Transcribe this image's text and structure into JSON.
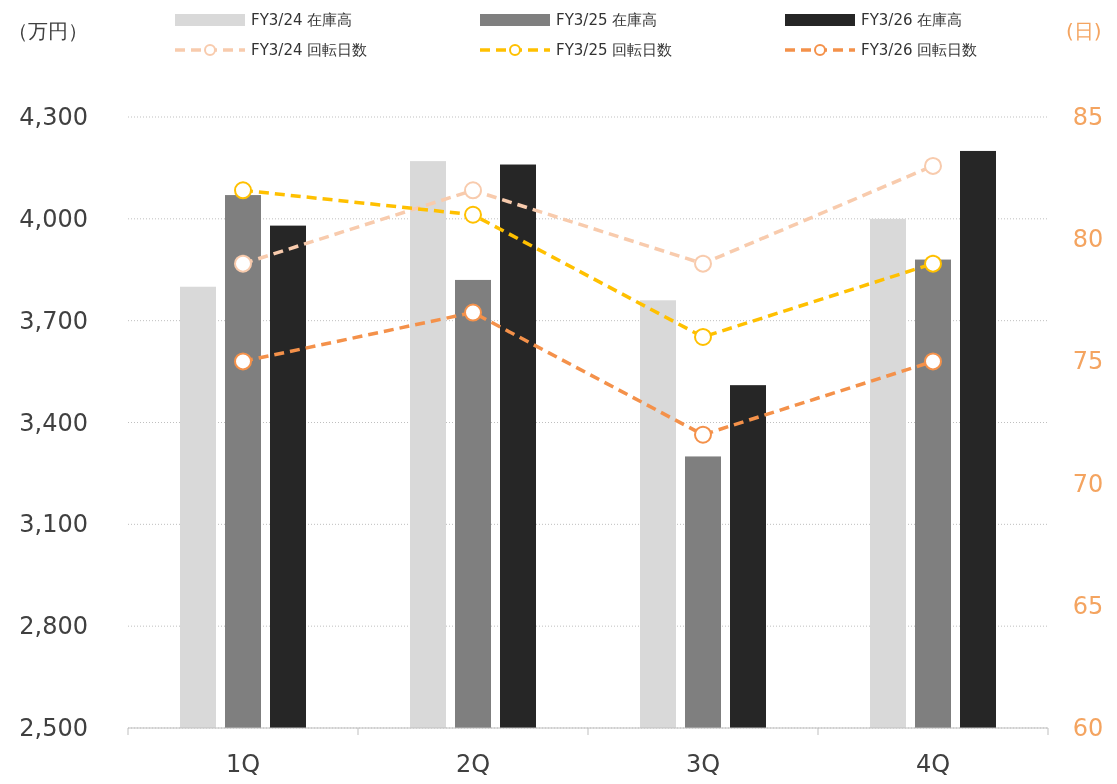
{
  "chart_data": {
    "type": "bar",
    "ylabel": "（万円）",
    "y2label": "(日)",
    "categories": [
      "1Q",
      "2Q",
      "3Q",
      "4Q"
    ],
    "ylim": [
      2500,
      4300
    ],
    "yticks": [
      {
        "value": 2500,
        "label": "2,500"
      },
      {
        "value": 2800,
        "label": "2,800"
      },
      {
        "value": 3100,
        "label": "3,100"
      },
      {
        "value": 3400,
        "label": "3,400"
      },
      {
        "value": 3700,
        "label": "3,700"
      },
      {
        "value": 4000,
        "label": "4,000"
      },
      {
        "value": 4300,
        "label": "4,300"
      }
    ],
    "y2lim": [
      60,
      85
    ],
    "y2ticks": [
      60,
      65,
      70,
      75,
      80,
      85
    ],
    "grid": "y",
    "legend": "top",
    "marker": "circle",
    "line_style": "dashed",
    "series": [
      {
        "name": "FY3/24 在庫高",
        "color": "#d9d9d9",
        "values": [
          3800,
          4170,
          3760,
          4000
        ]
      },
      {
        "name": "FY3/25 在庫高",
        "color": "#7f7f7f",
        "values": [
          4070,
          3820,
          3300,
          3880
        ]
      },
      {
        "name": "FY3/26 在庫高",
        "color": "#262626",
        "values": [
          3980,
          4160,
          3510,
          4200
        ]
      },
      {
        "name": "FY3/24 回転日数",
        "type": "line",
        "axis": "y2",
        "color": "#f8cbad",
        "values": [
          79,
          82,
          79,
          83
        ]
      },
      {
        "name": "FY3/25 回転日数",
        "type": "line",
        "axis": "y2",
        "color": "#ffc000",
        "values": [
          82,
          81,
          76,
          79
        ]
      },
      {
        "name": "FY3/26 回転日数",
        "type": "line",
        "axis": "y2",
        "color": "#f4914a",
        "values": [
          75,
          77,
          72,
          75
        ]
      }
    ]
  }
}
